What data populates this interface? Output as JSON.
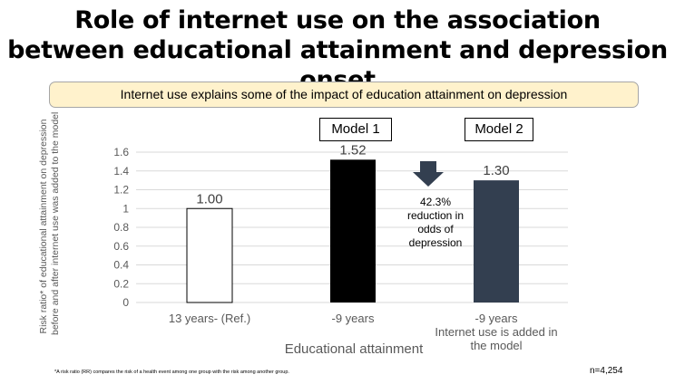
{
  "title": {
    "line1": "Role of internet use on the association",
    "line2": "between educational attainment and depression onset"
  },
  "callout": "Internet use explains some of the impact of education attainment on depression",
  "models": {
    "model1": "Model 1",
    "model2": "Model 2"
  },
  "annotation": {
    "line1": "42.3%",
    "line2": "reduction in",
    "line3": "odds of",
    "line4": "depression"
  },
  "footnote": "*A risk ratio (RR) compares the risk of a health event among one group with the risk among another group.",
  "n_label": "n=4,254",
  "colors": {
    "callout_bg": "#fff2cc",
    "bar_ref": "#ffffff",
    "bar_model1": "#000000",
    "bar_model2": "#333f50",
    "arrow": "#333f50",
    "grid": "#d9d9d9",
    "axis_text": "#595959"
  },
  "chart_data": {
    "type": "bar",
    "categories": [
      [
        "13 years- (Ref.)"
      ],
      [
        "-9 years"
      ],
      [
        "-9 years",
        "Internet use is added in",
        "the model"
      ]
    ],
    "values": [
      1.0,
      1.52,
      1.3
    ],
    "value_labels": [
      "1.00",
      "1.52",
      "1.30"
    ],
    "xlabel": "Educational attainment",
    "ylabel_lines": [
      "Risk ratio* of educational attainment on depression",
      "before and after internet use was added to the model"
    ],
    "ylim": [
      0,
      1.6
    ],
    "yticks": [
      0,
      0.2,
      0.4,
      0.6,
      0.8,
      1,
      1.2,
      1.4,
      1.6
    ],
    "ytick_labels": [
      "0",
      "0.2",
      "0.4",
      "0.6",
      "0.8",
      "1",
      "1.2",
      "1.4",
      "1.6"
    ],
    "grid": true,
    "legend": "none"
  }
}
